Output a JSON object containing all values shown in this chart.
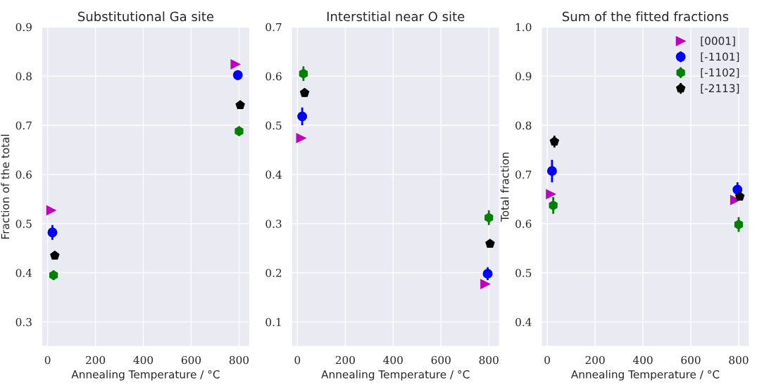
{
  "chart_data": [
    {
      "type": "scatter",
      "title": "Substitutional Ga site",
      "xlabel": "Annealing Temperature / °C",
      "ylabel": "Fraction of the total",
      "xlim": [
        -25,
        845
      ],
      "xticks": [
        0,
        200,
        400,
        600,
        800
      ],
      "ylim": [
        0.25,
        0.9
      ],
      "yticks": [
        0.3,
        0.4,
        0.5,
        0.6,
        0.7,
        0.8,
        0.9
      ],
      "grid": true,
      "legend": false,
      "series": [
        {
          "color": "#bf00bf",
          "marker": "triangle",
          "x": [
            15,
            785
          ],
          "values": [
            0.527,
            0.824
          ]
        },
        {
          "color": "#0000ff",
          "marker": "circle",
          "x": [
            20,
            795
          ],
          "values": [
            0.482,
            0.802
          ],
          "errors": [
            0.015,
            0.01
          ]
        },
        {
          "color": "#008000",
          "x": [
            25,
            800
          ],
          "values": [
            0.395,
            0.688
          ],
          "errors": [
            0.01,
            0.01
          ]
        },
        {
          "color": "#000000",
          "x": [
            30,
            805
          ],
          "values": [
            0.435,
            0.741
          ]
        }
      ]
    },
    {
      "type": "scatter",
      "title": "Interstitial near O site",
      "xlabel": "Annealing Temperature / °C",
      "xlim": [
        -25,
        845
      ],
      "xticks": [
        0,
        200,
        400,
        600,
        800
      ],
      "ylim": [
        0.05,
        0.7
      ],
      "yticks": [
        0.1,
        0.2,
        0.3,
        0.4,
        0.5,
        0.6,
        0.7
      ],
      "grid": true,
      "legend": false,
      "series": [
        {
          "color": "#bf00bf",
          "marker": "triangle",
          "x": [
            15,
            785
          ],
          "values": [
            0.474,
            0.177
          ]
        },
        {
          "color": "#0000ff",
          "marker": "circle",
          "x": [
            20,
            795
          ],
          "values": [
            0.518,
            0.198
          ],
          "errors": [
            0.018,
            0.013
          ]
        },
        {
          "color": "#008000",
          "x": [
            25,
            800
          ],
          "values": [
            0.605,
            0.312
          ],
          "errors": [
            0.015,
            0.015
          ]
        },
        {
          "color": "#000000",
          "x": [
            30,
            805
          ],
          "values": [
            0.566,
            0.259
          ],
          "errors": [
            0.008,
            0.005
          ]
        }
      ]
    },
    {
      "type": "scatter",
      "title": "Sum of the fitted fractions",
      "xlabel": "Annealing Temperature / °C",
      "ylabel": "Total fraction",
      "xlim": [
        -25,
        845
      ],
      "xticks": [
        0,
        200,
        400,
        600,
        800
      ],
      "ylim": [
        0.35,
        1.0
      ],
      "yticks": [
        0.4,
        0.5,
        0.6,
        0.7,
        0.8,
        0.9,
        {
          "value": 1.0,
          "label": "1.0"
        }
      ],
      "grid": true,
      "legend": "top right",
      "series": [
        {
          "name": "[0001]",
          "color": "#bf00bf",
          "marker": "triangle",
          "x": [
            15,
            785
          ],
          "values": [
            0.66,
            0.648
          ]
        },
        {
          "name": "[-1101]",
          "color": "#0000ff",
          "marker": "circle",
          "x": [
            20,
            795
          ],
          "values": [
            0.707,
            0.669
          ],
          "errors": [
            0.023,
            0.015
          ]
        },
        {
          "name": "[-1102]",
          "color": "#008000",
          "x": [
            25,
            800
          ],
          "values": [
            0.637,
            0.598
          ],
          "errors": [
            0.017,
            0.015
          ]
        },
        {
          "name": "[-2113]",
          "color": "#000000",
          "x": [
            30,
            805
          ],
          "values": [
            0.767,
            0.655
          ],
          "errors": [
            0.012,
            0.006
          ]
        }
      ]
    }
  ]
}
